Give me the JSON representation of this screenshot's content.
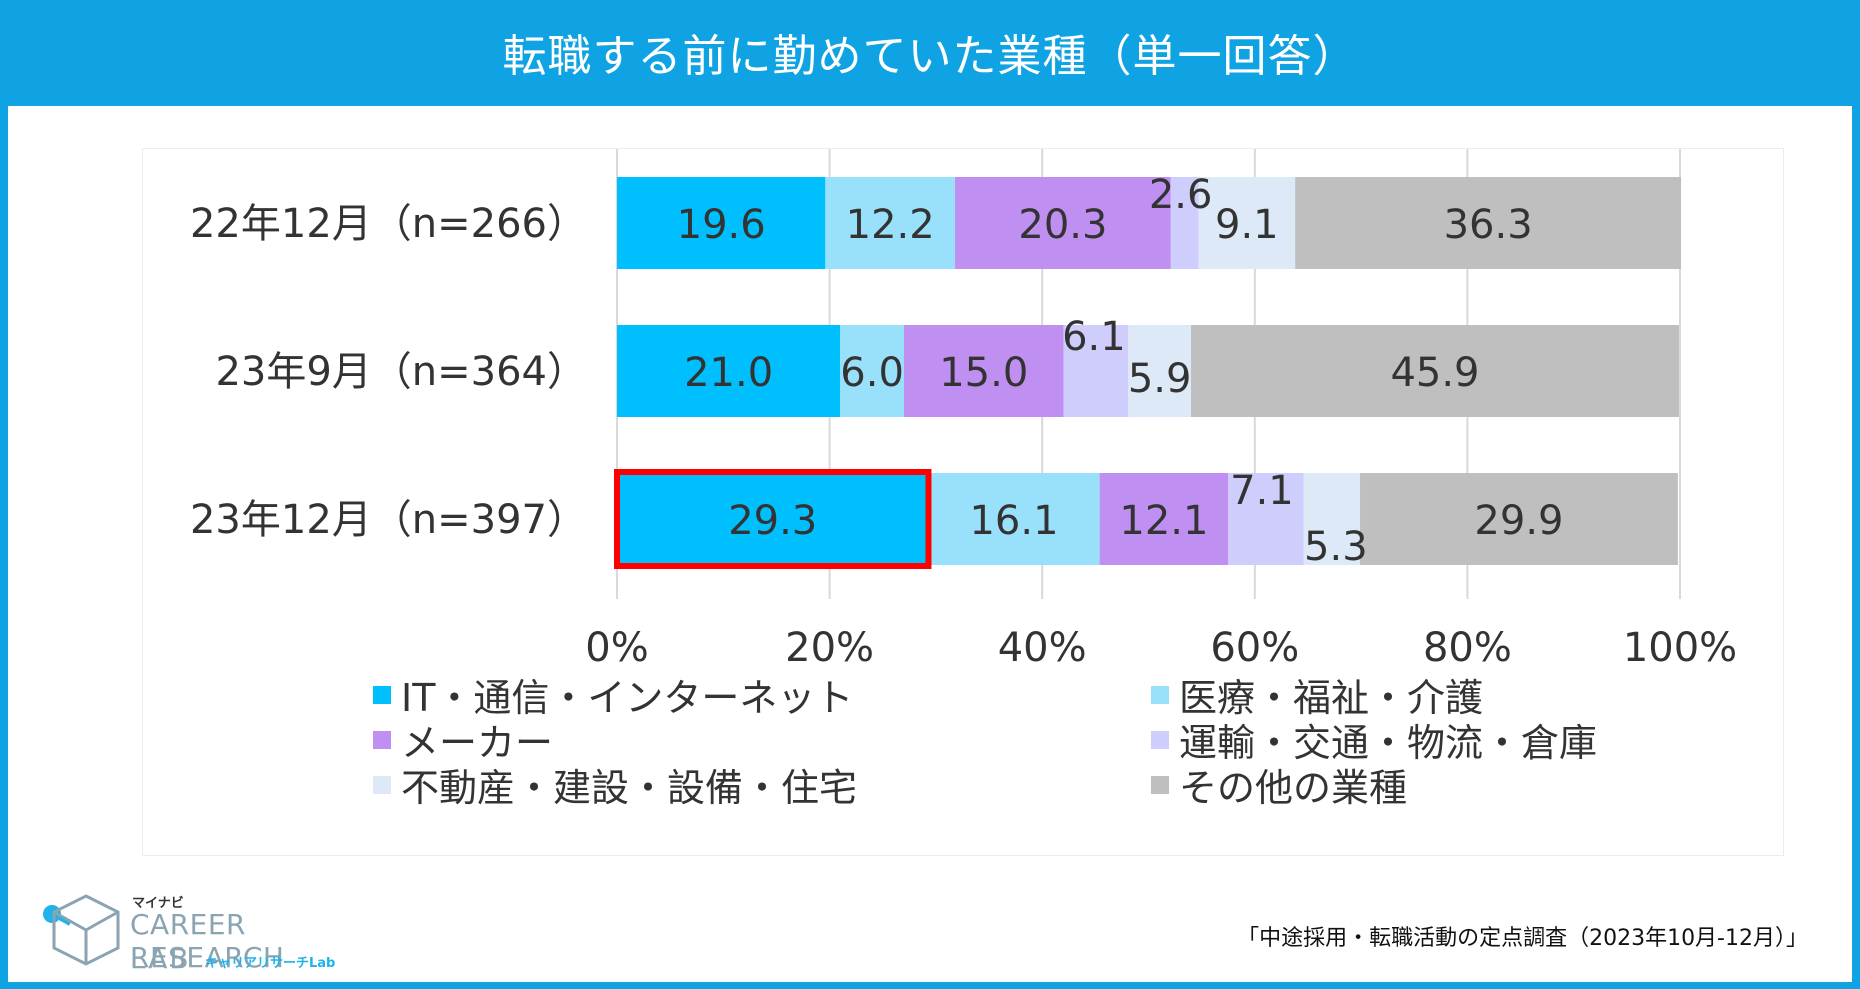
{
  "header": {
    "title": "転職する前に勤めていた業種（単一回答）"
  },
  "chart_data": {
    "type": "bar",
    "orientation": "horizontal",
    "stacked": true,
    "percent": true,
    "title": "転職する前に勤めていた業種（単一回答）",
    "categories": [
      "22年12月（n=266）",
      "23年9月（n=364）",
      "23年12月（n=397）"
    ],
    "series": [
      {
        "name": "IT・通信・インターネット",
        "color": "#00bfff",
        "values": [
          19.6,
          21.0,
          29.3
        ]
      },
      {
        "name": "医療・福祉・介護",
        "color": "#99e0fa",
        "values": [
          12.2,
          6.0,
          16.1
        ]
      },
      {
        "name": "メーカー",
        "color": "#c08ff2",
        "values": [
          20.3,
          15.0,
          12.1
        ]
      },
      {
        "name": "運輸・交通・物流・倉庫",
        "color": "#cfcdfb",
        "values": [
          2.6,
          6.1,
          7.1
        ]
      },
      {
        "name": "不動産・建設・設備・住宅",
        "color": "#dde9f6",
        "values": [
          9.1,
          5.9,
          5.3
        ]
      },
      {
        "name": "その他の業種",
        "color": "#bfbfbf",
        "values": [
          36.3,
          45.9,
          29.9
        ]
      }
    ],
    "value_labels": [
      [
        "19.6",
        "12.2",
        "20.3",
        "2.6",
        "9.1",
        "36.3"
      ],
      [
        "21.0",
        "6.0",
        "15.0",
        "6.1",
        "5.9",
        "45.9"
      ],
      [
        "29.3",
        "16.1",
        "12.1",
        "7.1",
        "5.3",
        "29.9"
      ]
    ],
    "x_ticks": [
      "0%",
      "20%",
      "40%",
      "60%",
      "80%",
      "100%"
    ],
    "xlim": [
      0,
      100
    ],
    "grid": true,
    "legend_position": "bottom",
    "highlight": {
      "row": 2,
      "series": 0,
      "color": "#ff0000"
    }
  },
  "footer": {
    "source": "「中途採用・転職活動の定点調査（2023年10月-12月）」",
    "logo_top": "マイナビ",
    "logo_line1": "CAREER RESEARCH",
    "logo_line2": "LAB",
    "logo_kana": "キャリアリサーチLab"
  },
  "colors": {
    "header_bg": "#10a3e3",
    "highlight": "#ff0000"
  }
}
